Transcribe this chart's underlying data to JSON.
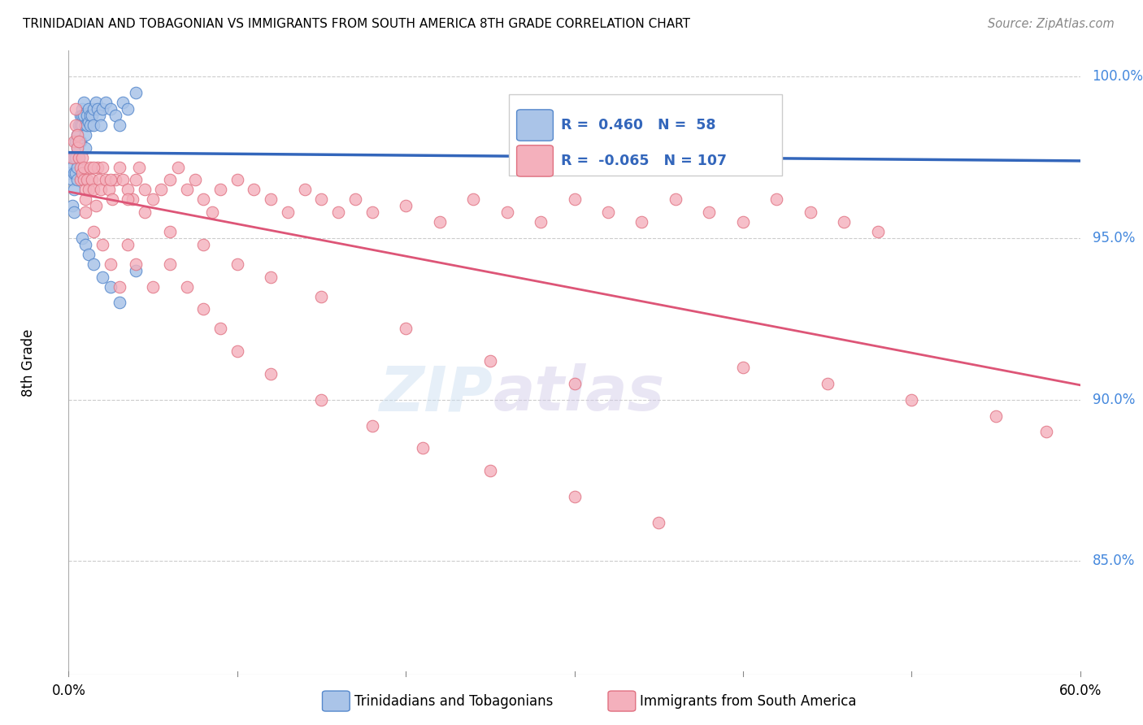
{
  "title": "TRINIDADIAN AND TOBAGONIAN VS IMMIGRANTS FROM SOUTH AMERICA 8TH GRADE CORRELATION CHART",
  "source": "Source: ZipAtlas.com",
  "ylabel": "8th Grade",
  "yaxis_labels": [
    "100.0%",
    "95.0%",
    "90.0%",
    "85.0%"
  ],
  "yaxis_values": [
    1.0,
    0.95,
    0.9,
    0.85
  ],
  "xlim": [
    0.0,
    0.6
  ],
  "ylim": [
    0.815,
    1.008
  ],
  "blue_R": 0.46,
  "blue_N": 58,
  "pink_R": -0.065,
  "pink_N": 107,
  "blue_label": "Trinidadians and Tobagonians",
  "pink_label": "Immigrants from South America",
  "blue_color": "#aac4e8",
  "blue_edge_color": "#5588cc",
  "pink_color": "#f4b0bc",
  "pink_edge_color": "#e07080",
  "blue_line_color": "#3366bb",
  "pink_line_color": "#dd5577",
  "blue_x": [
    0.001,
    0.002,
    0.002,
    0.003,
    0.003,
    0.003,
    0.004,
    0.004,
    0.004,
    0.005,
    0.005,
    0.005,
    0.005,
    0.006,
    0.006,
    0.006,
    0.007,
    0.007,
    0.007,
    0.008,
    0.008,
    0.008,
    0.009,
    0.009,
    0.01,
    0.01,
    0.01,
    0.011,
    0.011,
    0.012,
    0.012,
    0.013,
    0.013,
    0.014,
    0.015,
    0.015,
    0.016,
    0.017,
    0.018,
    0.019,
    0.02,
    0.022,
    0.025,
    0.028,
    0.03,
    0.032,
    0.035,
    0.04,
    0.008,
    0.01,
    0.012,
    0.015,
    0.02,
    0.025,
    0.03,
    0.04,
    0.002,
    0.003
  ],
  "blue_y": [
    0.97,
    0.972,
    0.968,
    0.975,
    0.97,
    0.965,
    0.98,
    0.975,
    0.97,
    0.982,
    0.978,
    0.972,
    0.968,
    0.985,
    0.98,
    0.975,
    0.988,
    0.985,
    0.98,
    0.99,
    0.988,
    0.985,
    0.992,
    0.988,
    0.985,
    0.982,
    0.978,
    0.988,
    0.985,
    0.99,
    0.986,
    0.988,
    0.985,
    0.988,
    0.99,
    0.985,
    0.992,
    0.99,
    0.988,
    0.985,
    0.99,
    0.992,
    0.99,
    0.988,
    0.985,
    0.992,
    0.99,
    0.995,
    0.95,
    0.948,
    0.945,
    0.942,
    0.938,
    0.935,
    0.93,
    0.94,
    0.96,
    0.958
  ],
  "pink_x": [
    0.002,
    0.003,
    0.004,
    0.004,
    0.005,
    0.005,
    0.006,
    0.006,
    0.007,
    0.007,
    0.008,
    0.008,
    0.009,
    0.009,
    0.01,
    0.01,
    0.011,
    0.012,
    0.013,
    0.014,
    0.015,
    0.016,
    0.017,
    0.018,
    0.019,
    0.02,
    0.022,
    0.024,
    0.026,
    0.028,
    0.03,
    0.032,
    0.035,
    0.038,
    0.04,
    0.042,
    0.045,
    0.05,
    0.055,
    0.06,
    0.065,
    0.07,
    0.075,
    0.08,
    0.085,
    0.09,
    0.1,
    0.11,
    0.12,
    0.13,
    0.14,
    0.15,
    0.16,
    0.17,
    0.18,
    0.2,
    0.22,
    0.24,
    0.26,
    0.28,
    0.3,
    0.32,
    0.34,
    0.36,
    0.38,
    0.4,
    0.42,
    0.44,
    0.46,
    0.48,
    0.01,
    0.015,
    0.02,
    0.025,
    0.03,
    0.035,
    0.04,
    0.05,
    0.06,
    0.07,
    0.08,
    0.09,
    0.1,
    0.12,
    0.15,
    0.18,
    0.21,
    0.25,
    0.3,
    0.35,
    0.4,
    0.45,
    0.5,
    0.55,
    0.58,
    0.015,
    0.025,
    0.035,
    0.045,
    0.06,
    0.08,
    0.1,
    0.12,
    0.15,
    0.2,
    0.25,
    0.3
  ],
  "pink_y": [
    0.975,
    0.98,
    0.985,
    0.99,
    0.982,
    0.978,
    0.975,
    0.98,
    0.972,
    0.968,
    0.975,
    0.97,
    0.968,
    0.972,
    0.965,
    0.962,
    0.968,
    0.965,
    0.972,
    0.968,
    0.965,
    0.96,
    0.972,
    0.968,
    0.965,
    0.972,
    0.968,
    0.965,
    0.962,
    0.968,
    0.972,
    0.968,
    0.965,
    0.962,
    0.968,
    0.972,
    0.965,
    0.962,
    0.965,
    0.968,
    0.972,
    0.965,
    0.968,
    0.962,
    0.958,
    0.965,
    0.968,
    0.965,
    0.962,
    0.958,
    0.965,
    0.962,
    0.958,
    0.962,
    0.958,
    0.96,
    0.955,
    0.962,
    0.958,
    0.955,
    0.962,
    0.958,
    0.955,
    0.962,
    0.958,
    0.955,
    0.962,
    0.958,
    0.955,
    0.952,
    0.958,
    0.952,
    0.948,
    0.942,
    0.935,
    0.948,
    0.942,
    0.935,
    0.942,
    0.935,
    0.928,
    0.922,
    0.915,
    0.908,
    0.9,
    0.892,
    0.885,
    0.878,
    0.87,
    0.862,
    0.91,
    0.905,
    0.9,
    0.895,
    0.89,
    0.972,
    0.968,
    0.962,
    0.958,
    0.952,
    0.948,
    0.942,
    0.938,
    0.932,
    0.922,
    0.912,
    0.905
  ]
}
